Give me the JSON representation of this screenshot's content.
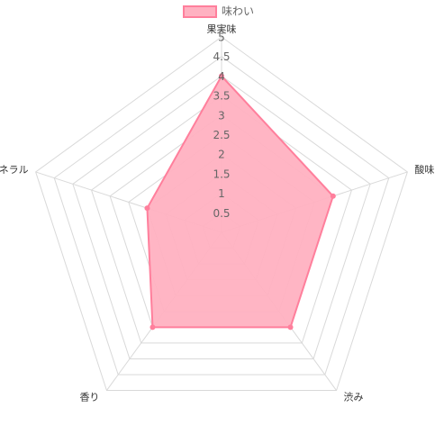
{
  "chart_data": {
    "type": "radar",
    "categories": [
      "果実味",
      "酸味",
      "渋み",
      "香り",
      "ミネラル"
    ],
    "series": [
      {
        "name": "味わい",
        "values": [
          4,
          3,
          3,
          3,
          2
        ]
      }
    ],
    "rlim": [
      0,
      5
    ],
    "ticks": [
      "0.5",
      "1",
      "1.5",
      "2",
      "2.5",
      "3",
      "3.5",
      "4",
      "4.5",
      "5"
    ],
    "grid": true,
    "legend_position": "top",
    "colors": {
      "fill": "#ffb1c1",
      "stroke": "#ff7f9c",
      "grid": "#d9d9d9"
    }
  }
}
